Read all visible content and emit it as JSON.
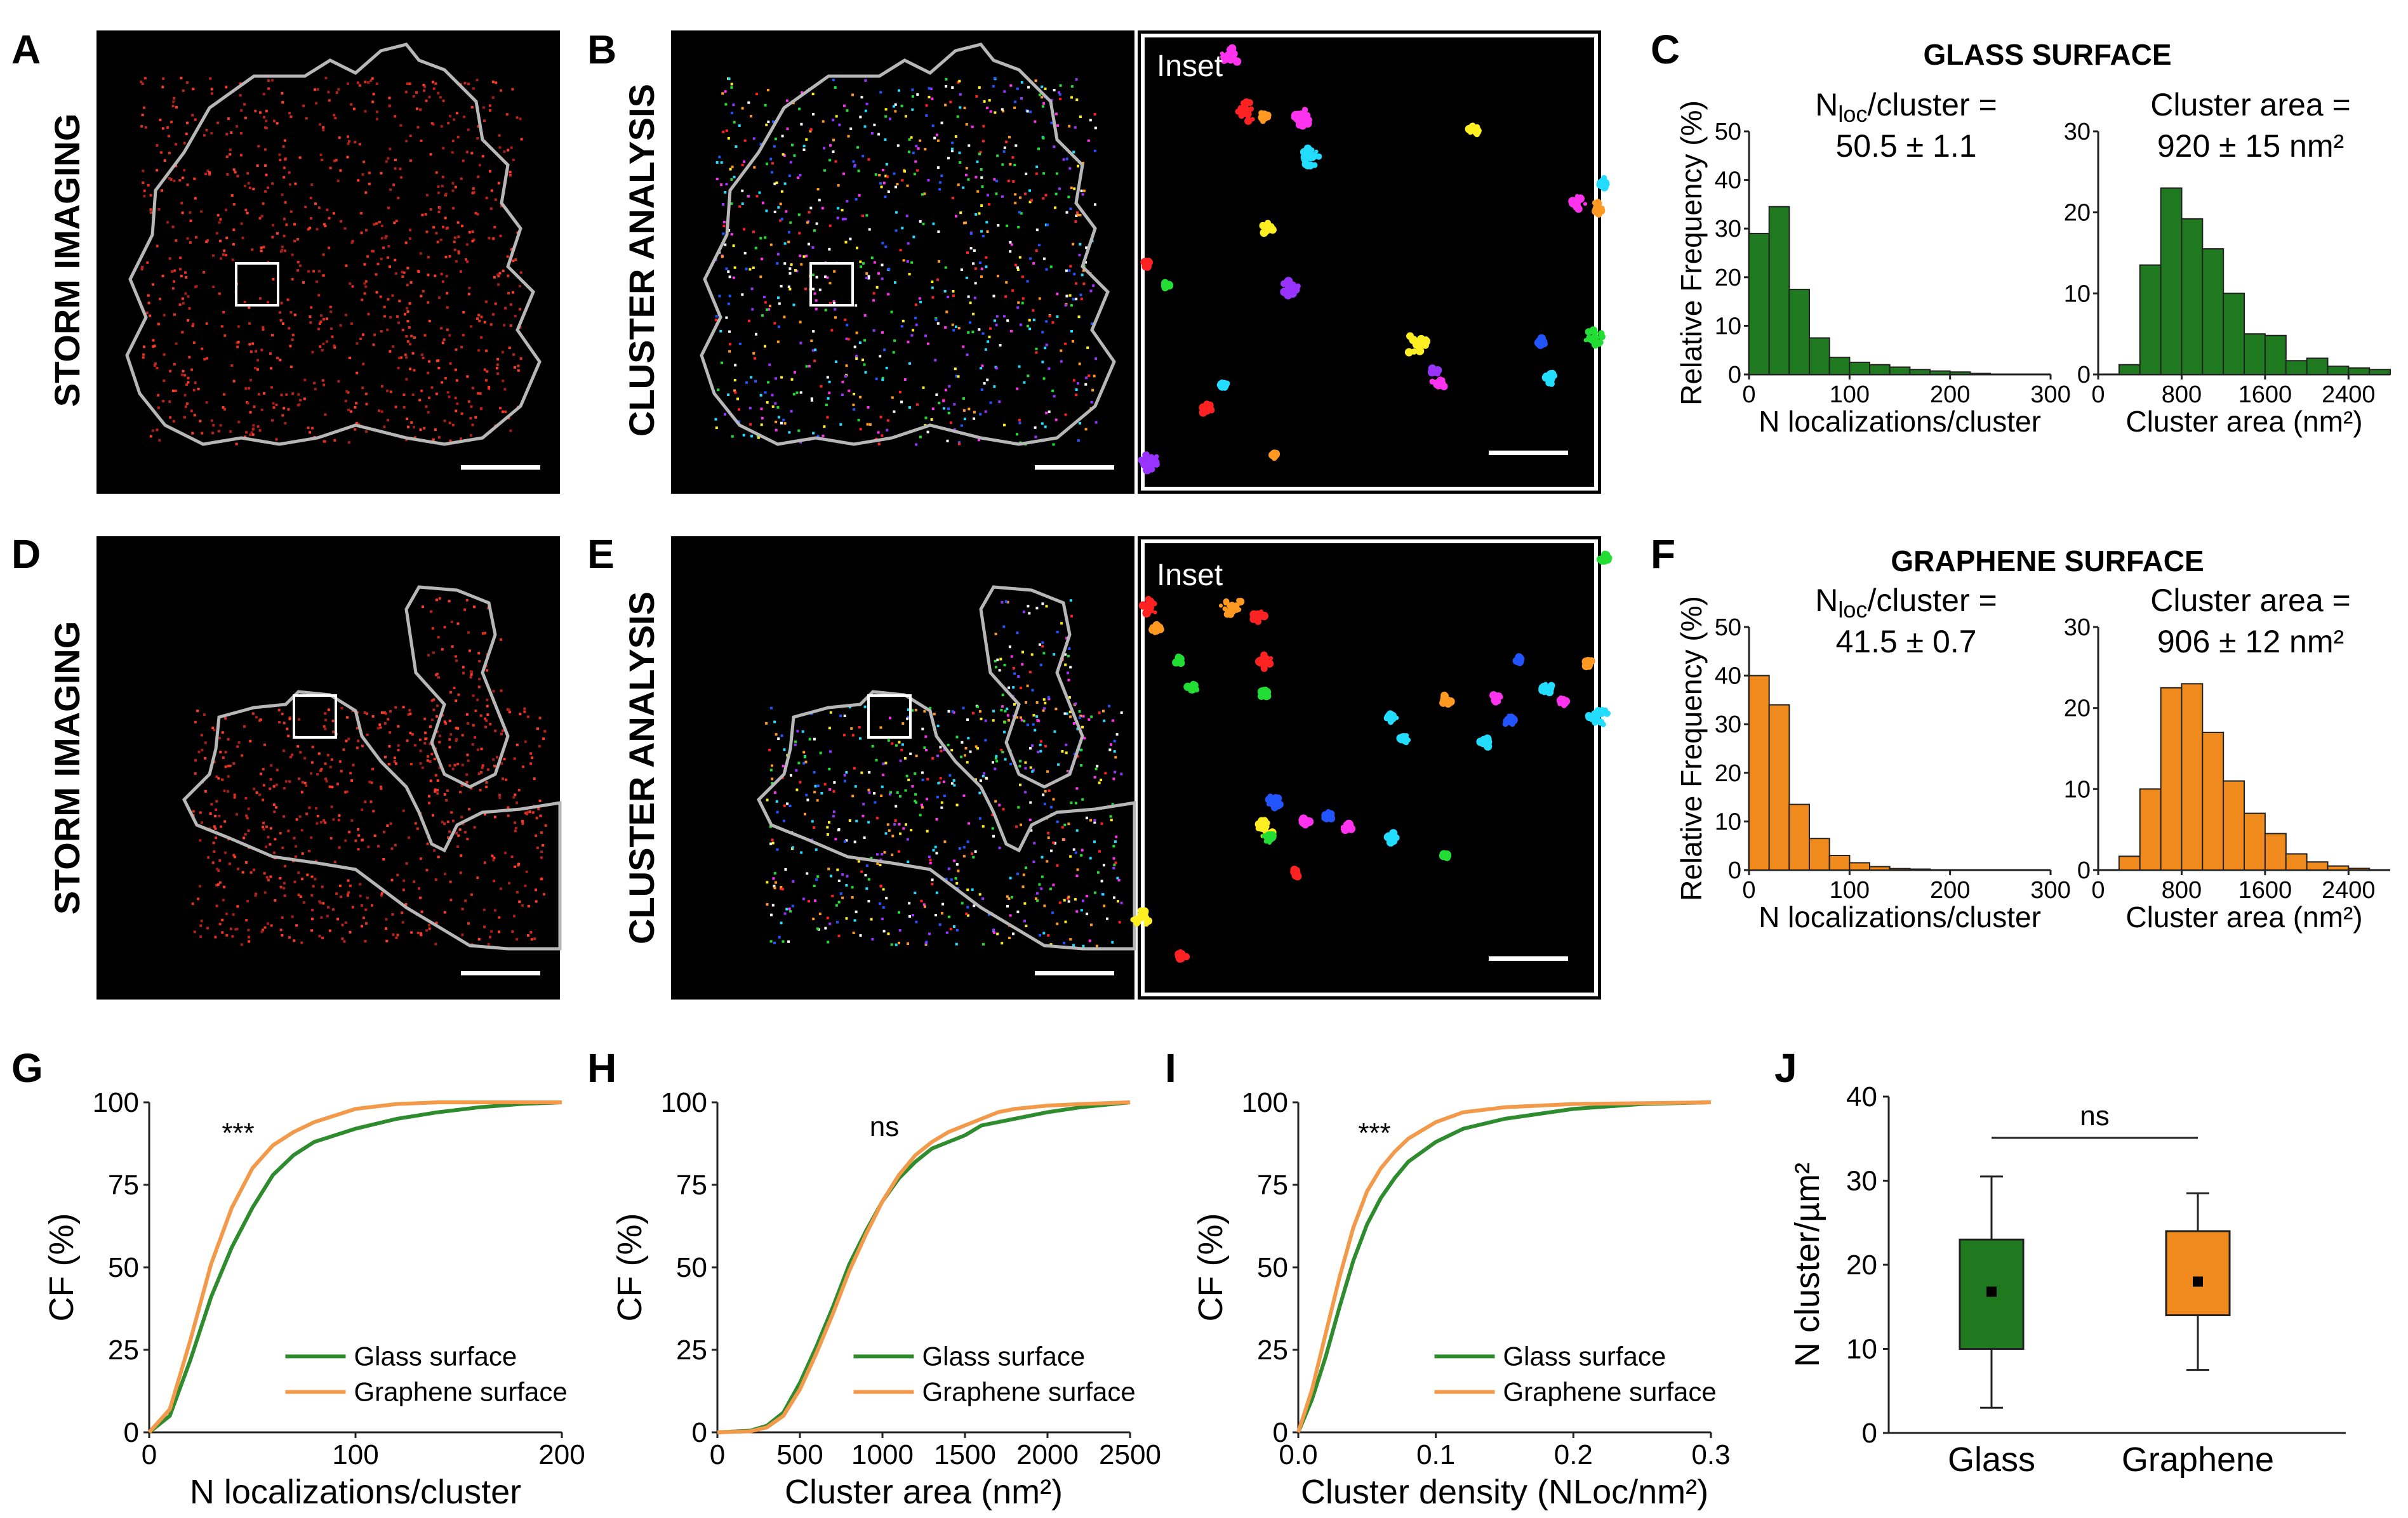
{
  "figure": {
    "panel_letters": [
      "A",
      "B",
      "C",
      "D",
      "E",
      "F",
      "G",
      "H",
      "I",
      "J"
    ],
    "microscopy": {
      "storm_label": "STORM IMAGING",
      "cluster_label": "CLUSTER ANALYSIS",
      "inset_label": "Inset"
    },
    "glass_title": "GLASS SURFACE",
    "graphene_title": "GRAPHENE SURFACE",
    "colors": {
      "glass": "#1f7a1f",
      "graphene": "#f08a1c",
      "glass_curve": "#2e8b2e",
      "graphene_curve": "#f2994a"
    }
  },
  "chart_data": [
    {
      "id": "C-left",
      "type": "bar",
      "stat_prefix": "N",
      "stat_sub": "loc",
      "stat_suffix": "/cluster =",
      "stat_value": "50.5 ± 1.1",
      "xlabel": "N localizations/cluster",
      "ylabel": "Relative Frequency (%)",
      "xticks": [
        "0",
        "100",
        "200",
        "300"
      ],
      "yticks": [
        "0",
        "10",
        "20",
        "30",
        "40",
        "50"
      ],
      "xlim": [
        0,
        300
      ],
      "ylim": [
        0,
        50
      ],
      "bin_width": 20,
      "bin_starts": [
        0,
        20,
        40,
        60,
        80,
        100,
        120,
        140,
        160,
        180,
        200,
        220
      ],
      "values": [
        29,
        34.5,
        17.5,
        7.5,
        3.5,
        2.5,
        2,
        1.5,
        1,
        0.7,
        0.5,
        0.2
      ]
    },
    {
      "id": "C-right",
      "type": "bar",
      "stat_prefix": "Cluster area =",
      "stat_value": "920 ± 15 nm²",
      "xlabel": "Cluster area (nm²)",
      "ylabel": "",
      "xticks": [
        "0",
        "800",
        "1600",
        "2400"
      ],
      "yticks": [
        "0",
        "10",
        "20",
        "30"
      ],
      "xlim": [
        0,
        2800
      ],
      "ylim": [
        0,
        30
      ],
      "bin_width": 200,
      "bin_starts": [
        200,
        400,
        600,
        800,
        1000,
        1200,
        1400,
        1600,
        1800,
        2000,
        2200,
        2400,
        2600
      ],
      "values": [
        1.2,
        13.5,
        23,
        19.2,
        15.5,
        10,
        5,
        4.8,
        1.7,
        2,
        1,
        0.8,
        0.6
      ]
    },
    {
      "id": "F-left",
      "type": "bar",
      "stat_prefix": "N",
      "stat_sub": "loc",
      "stat_suffix": "/cluster =",
      "stat_value": "41.5 ± 0.7",
      "xlabel": "N localizations/cluster",
      "ylabel": "Relative Frequency (%)",
      "xticks": [
        "0",
        "100",
        "200",
        "300"
      ],
      "yticks": [
        "0",
        "10",
        "20",
        "30",
        "40",
        "50"
      ],
      "xlim": [
        0,
        300
      ],
      "ylim": [
        0,
        50
      ],
      "bin_width": 20,
      "bin_starts": [
        0,
        20,
        40,
        60,
        80,
        100,
        120,
        140,
        160
      ],
      "values": [
        40,
        34,
        13.5,
        6.5,
        3,
        1.5,
        0.7,
        0.3,
        0.2
      ]
    },
    {
      "id": "F-right",
      "type": "bar",
      "stat_prefix": "Cluster area =",
      "stat_value": "906 ± 12 nm²",
      "xlabel": "Cluster area (nm²)",
      "ylabel": "",
      "xticks": [
        "0",
        "800",
        "1600",
        "2400"
      ],
      "yticks": [
        "0",
        "10",
        "20",
        "30"
      ],
      "xlim": [
        0,
        2800
      ],
      "ylim": [
        0,
        30
      ],
      "bin_width": 200,
      "bin_starts": [
        200,
        400,
        600,
        800,
        1000,
        1200,
        1400,
        1600,
        1800,
        2000,
        2200,
        2400
      ],
      "values": [
        1.7,
        10,
        22.5,
        23,
        17,
        11,
        7,
        4.5,
        2,
        1,
        0.5,
        0.2
      ]
    },
    {
      "id": "G",
      "type": "line",
      "xlabel": "N localizations/cluster",
      "ylabel": "CF (%)",
      "significance": "***",
      "xlim": [
        0,
        200
      ],
      "ylim": [
        0,
        100
      ],
      "xticks": [
        "0",
        "100",
        "200"
      ],
      "yticks": [
        "0",
        "25",
        "50",
        "75",
        "100"
      ],
      "series": [
        {
          "name": "Glass surface",
          "x": [
            0,
            10,
            20,
            30,
            40,
            50,
            60,
            70,
            80,
            100,
            120,
            140,
            160,
            180,
            200
          ],
          "y": [
            0,
            5,
            22,
            41,
            56,
            68,
            78,
            84,
            88,
            92,
            95,
            97,
            98.5,
            99.5,
            100
          ]
        },
        {
          "name": "Graphene surface",
          "x": [
            0,
            10,
            20,
            30,
            40,
            50,
            60,
            70,
            80,
            100,
            120,
            140,
            160,
            200
          ],
          "y": [
            0,
            7,
            28,
            51,
            68,
            80,
            87,
            91,
            94,
            98,
            99.5,
            100,
            100,
            100
          ]
        }
      ]
    },
    {
      "id": "H",
      "type": "line",
      "xlabel": "Cluster area (nm²)",
      "ylabel": "CF (%)",
      "significance": "ns",
      "xlim": [
        0,
        2500
      ],
      "ylim": [
        0,
        100
      ],
      "xticks": [
        "0",
        "500",
        "1000",
        "1500",
        "2000",
        "2500"
      ],
      "yticks": [
        "0",
        "25",
        "50",
        "75",
        "100"
      ],
      "series": [
        {
          "name": "Glass surface",
          "x": [
            0,
            200,
            300,
            400,
            500,
            600,
            700,
            800,
            900,
            1000,
            1100,
            1200,
            1300,
            1400,
            1500,
            1600,
            1700,
            1800,
            2000,
            2200,
            2500
          ],
          "y": [
            0,
            0.5,
            2,
            6,
            15,
            26,
            38,
            51,
            61,
            70,
            77,
            82,
            86,
            88,
            90,
            93,
            94,
            95,
            97,
            98.5,
            100
          ]
        },
        {
          "name": "Graphene surface",
          "x": [
            0,
            200,
            300,
            400,
            500,
            600,
            700,
            800,
            900,
            1000,
            1100,
            1200,
            1300,
            1400,
            1500,
            1600,
            1700,
            1800,
            2000,
            2200,
            2500
          ],
          "y": [
            0,
            0.3,
            1.5,
            5,
            13,
            24,
            36,
            49,
            60,
            70,
            78,
            84,
            88,
            91,
            93,
            95,
            97,
            98,
            99,
            99.5,
            100
          ]
        }
      ]
    },
    {
      "id": "I",
      "type": "line",
      "xlabel": "Cluster density (NLoc/nm²)",
      "ylabel": "CF (%)",
      "significance": "***",
      "xlim": [
        0,
        0.3
      ],
      "ylim": [
        0,
        100
      ],
      "xticks": [
        "0.0",
        "0.1",
        "0.2",
        "0.3"
      ],
      "yticks": [
        "0",
        "25",
        "50",
        "75",
        "100"
      ],
      "series": [
        {
          "name": "Glass surface",
          "x": [
            0,
            0.01,
            0.02,
            0.03,
            0.04,
            0.05,
            0.06,
            0.07,
            0.08,
            0.1,
            0.12,
            0.15,
            0.2,
            0.25,
            0.3
          ],
          "y": [
            0,
            10,
            23,
            38,
            52,
            63,
            71,
            77,
            82,
            88,
            92,
            95,
            98,
            99.5,
            100
          ]
        },
        {
          "name": "Graphene surface",
          "x": [
            0,
            0.01,
            0.02,
            0.03,
            0.04,
            0.05,
            0.06,
            0.07,
            0.08,
            0.1,
            0.12,
            0.15,
            0.2,
            0.3
          ],
          "y": [
            0,
            13,
            30,
            47,
            62,
            73,
            80,
            85,
            89,
            94,
            97,
            98.5,
            99.5,
            100
          ]
        }
      ]
    },
    {
      "id": "J",
      "type": "box",
      "ylabel": "N cluster/µm²",
      "significance": "ns",
      "categories": [
        "Glass",
        "Graphene"
      ],
      "ylim": [
        0,
        40
      ],
      "yticks": [
        "0",
        "10",
        "20",
        "30",
        "40"
      ],
      "boxes": [
        {
          "name": "Glass",
          "min": 3,
          "q1": 10,
          "q3": 23,
          "max": 30.5,
          "mean": 16.8
        },
        {
          "name": "Graphene",
          "min": 7.5,
          "q1": 14,
          "q3": 24,
          "max": 28.5,
          "mean": 18
        }
      ]
    }
  ]
}
